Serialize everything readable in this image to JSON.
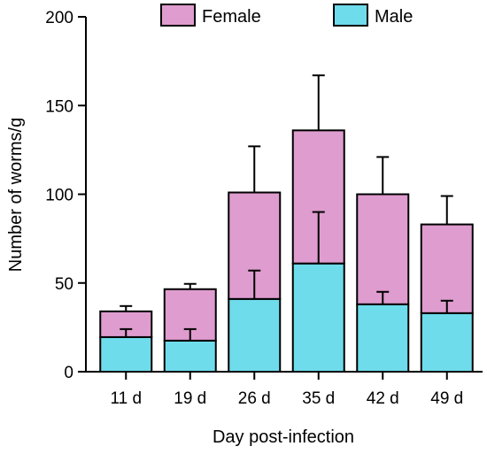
{
  "chart_data": {
    "type": "bar",
    "stacked": true,
    "categories": [
      "11 d",
      "19 d",
      "26 d",
      "35 d",
      "42 d",
      "49 d"
    ],
    "series": [
      {
        "name": "Male",
        "values": [
          19.5,
          17.5,
          41,
          61,
          38,
          33
        ],
        "error_upper": [
          24,
          24,
          57,
          90,
          45,
          40
        ],
        "color": "#6edceb"
      },
      {
        "name": "Female",
        "values": [
          14.5,
          29,
          60,
          75,
          62,
          50
        ],
        "error_upper": [
          37,
          49.5,
          127,
          167,
          121,
          99
        ],
        "color": "#df9ccf"
      }
    ],
    "xlabel": "Day post-infection",
    "ylabel": "Number of worms/g",
    "ylim": [
      0,
      200
    ],
    "yticks": [
      0,
      50,
      100,
      150,
      200
    ],
    "grid": false,
    "legend": "top"
  }
}
